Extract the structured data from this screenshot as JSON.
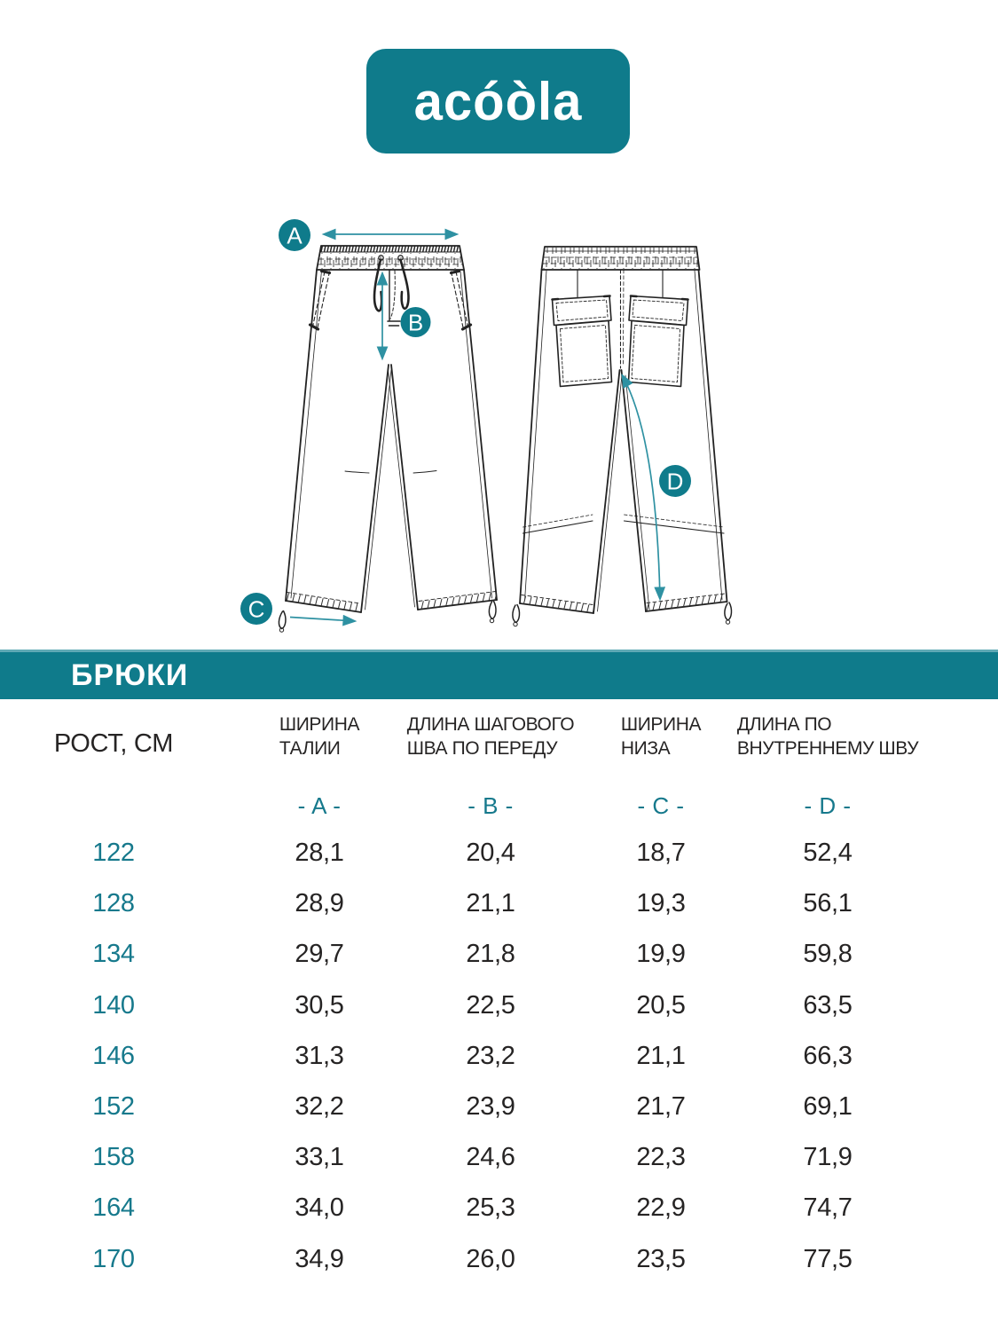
{
  "brand": {
    "logo_text": "acóòla"
  },
  "banner": {
    "title": "БРЮКИ"
  },
  "colors": {
    "teal": "#0f7b8b",
    "accent_text": "#16798c",
    "arrow": "#2e91a2",
    "ink": "#262424"
  },
  "diagram": {
    "labels": [
      {
        "letter": "A"
      },
      {
        "letter": "B"
      },
      {
        "letter": "C"
      },
      {
        "letter": "D"
      }
    ]
  },
  "table": {
    "row_header": "РОСТ, СМ",
    "columns": [
      {
        "title_lines": [
          "ШИРИНА",
          "ТАЛИИ"
        ],
        "letter": "- A -"
      },
      {
        "title_lines": [
          "ДЛИНА ШАГОВОГО",
          "ШВА ПО ПЕРЕДУ"
        ],
        "letter": "- B -"
      },
      {
        "title_lines": [
          "ШИРИНА",
          "НИЗА"
        ],
        "letter": "- C -"
      },
      {
        "title_lines": [
          "ДЛИНА ПО",
          "ВНУТРЕННЕМУ ШВУ"
        ],
        "letter": "- D -"
      }
    ],
    "rows": [
      {
        "height": "122",
        "values": [
          "28,1",
          "20,4",
          "18,7",
          "52,4"
        ]
      },
      {
        "height": "128",
        "values": [
          "28,9",
          "21,1",
          "19,3",
          "56,1"
        ]
      },
      {
        "height": "134",
        "values": [
          "29,7",
          "21,8",
          "19,9",
          "59,8"
        ]
      },
      {
        "height": "140",
        "values": [
          "30,5",
          "22,5",
          "20,5",
          "63,5"
        ]
      },
      {
        "height": "146",
        "values": [
          "31,3",
          "23,2",
          "21,1",
          "66,3"
        ]
      },
      {
        "height": "152",
        "values": [
          "32,2",
          "23,9",
          "21,7",
          "69,1"
        ]
      },
      {
        "height": "158",
        "values": [
          "33,1",
          "24,6",
          "22,3",
          "71,9"
        ]
      },
      {
        "height": "164",
        "values": [
          "34,0",
          "25,3",
          "22,9",
          "74,7"
        ]
      },
      {
        "height": "170",
        "values": [
          "34,9",
          "26,0",
          "23,5",
          "77,5"
        ]
      }
    ]
  }
}
